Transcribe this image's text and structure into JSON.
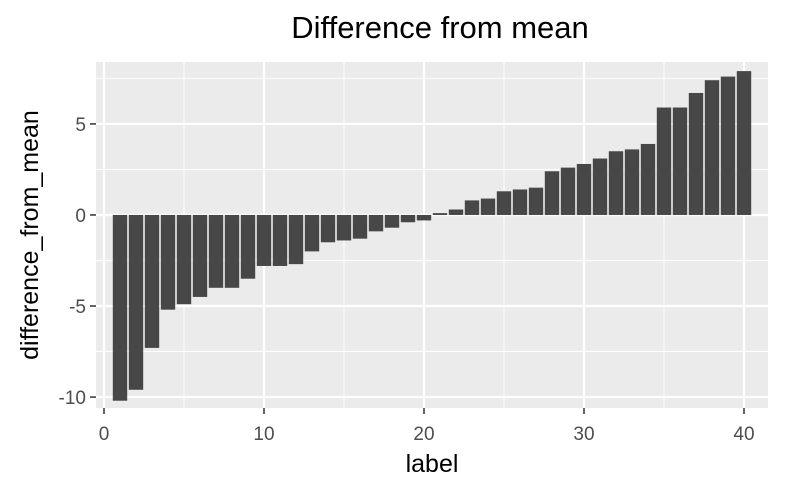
{
  "chart_data": {
    "type": "bar",
    "title": "Difference from mean",
    "xlabel": "label",
    "ylabel": "difference_from_mean",
    "xlim": [
      -0.5,
      41.5
    ],
    "ylim": [
      -10.6,
      8.4
    ],
    "x_ticks": [
      0,
      10,
      20,
      30,
      40
    ],
    "x_tick_labels": [
      "0",
      "10",
      "20",
      "30",
      "40"
    ],
    "y_ticks": [
      -10,
      -5,
      0,
      5
    ],
    "y_tick_labels": [
      "-10",
      "-5",
      "0",
      "5"
    ],
    "grid": true,
    "legend": "none",
    "x": [
      1,
      2,
      3,
      4,
      5,
      6,
      7,
      8,
      9,
      10,
      11,
      12,
      13,
      14,
      15,
      16,
      17,
      18,
      19,
      20,
      21,
      22,
      23,
      24,
      25,
      26,
      27,
      28,
      29,
      30,
      31,
      32,
      33,
      34,
      35,
      36,
      37,
      38,
      39,
      40
    ],
    "values": [
      -10.2,
      -9.6,
      -7.3,
      -5.2,
      -4.9,
      -4.5,
      -4.0,
      -4.0,
      -3.5,
      -2.8,
      -2.8,
      -2.7,
      -2.0,
      -1.5,
      -1.4,
      -1.3,
      -0.9,
      -0.7,
      -0.4,
      -0.3,
      0.1,
      0.3,
      0.8,
      0.9,
      1.3,
      1.4,
      1.5,
      2.4,
      2.6,
      2.8,
      3.1,
      3.5,
      3.6,
      3.9,
      5.9,
      5.9,
      6.7,
      7.4,
      7.6,
      7.9
    ],
    "colors": {
      "panel_background": "#ebebeb",
      "grid_major": "#ffffff",
      "bar_fill": "#474747",
      "tick_color": "#333333"
    }
  }
}
